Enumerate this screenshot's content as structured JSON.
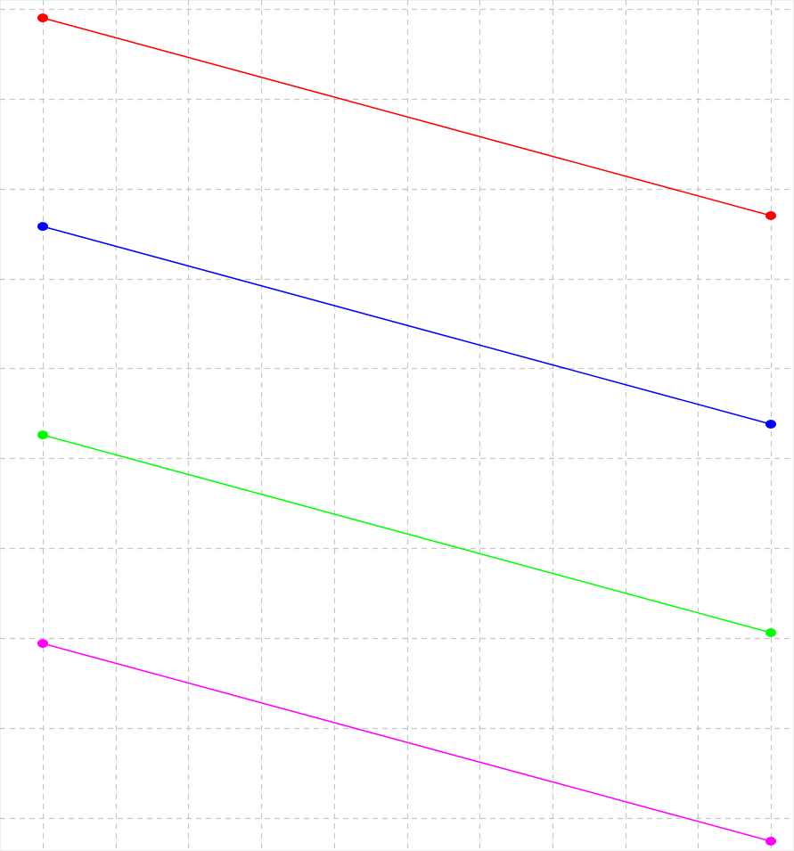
{
  "chart_data": {
    "type": "line",
    "title": "",
    "xlabel": "",
    "ylabel": "",
    "grid": true,
    "legend": "none",
    "xlim": [
      0,
      10
    ],
    "ylim": [
      0,
      9.3
    ],
    "x_gridlines": [
      0,
      1,
      2,
      3,
      4,
      5,
      6,
      7,
      8,
      9,
      10
    ],
    "y_gridlines": [
      0.3,
      1.3,
      2.3,
      3.3,
      4.3,
      5.3,
      6.3,
      7.3,
      8.3,
      9.3
    ],
    "series": [
      {
        "color": "#ff0000",
        "x": [
          0,
          10
        ],
        "y": [
          9.2,
          7.0
        ]
      },
      {
        "color": "#0000ff",
        "x": [
          0,
          10
        ],
        "y": [
          6.88,
          4.68
        ]
      },
      {
        "color": "#00ff00",
        "x": [
          0,
          10
        ],
        "y": [
          4.56,
          2.36
        ]
      },
      {
        "color": "#ff00ff",
        "x": [
          0,
          10
        ],
        "y": [
          2.24,
          0.04
        ]
      }
    ]
  }
}
